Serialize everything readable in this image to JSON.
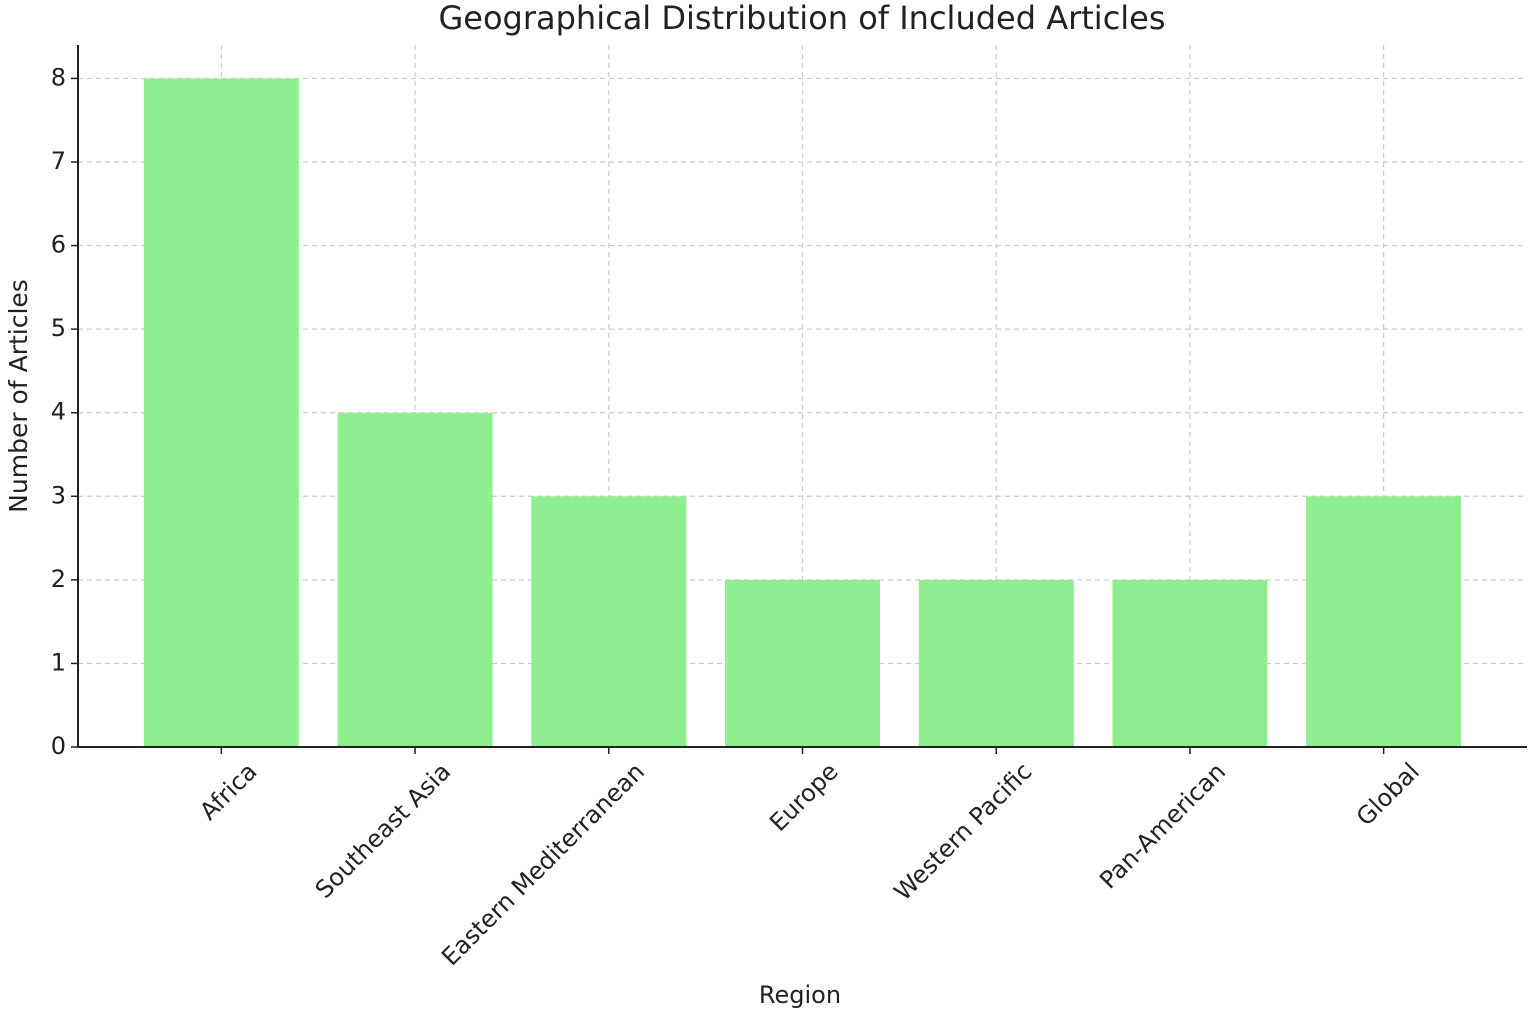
{
  "chart_data": {
    "type": "bar",
    "title": "Geographical Distribution of Included Articles",
    "x_label": "Region",
    "y_label": "Number of Articles",
    "categories": [
      "Africa",
      "Southeast Asia",
      "Eastern Mediterranean",
      "Europe",
      "Western Pacific",
      "Pan-American",
      "Global"
    ],
    "values": [
      8,
      4,
      3,
      2,
      2,
      2,
      3
    ],
    "color": "#90ee90",
    "ylim": [
      0,
      8.4
    ],
    "yticks": [
      0,
      1,
      2,
      3,
      4,
      5,
      6,
      7,
      8
    ],
    "grid": true
  }
}
